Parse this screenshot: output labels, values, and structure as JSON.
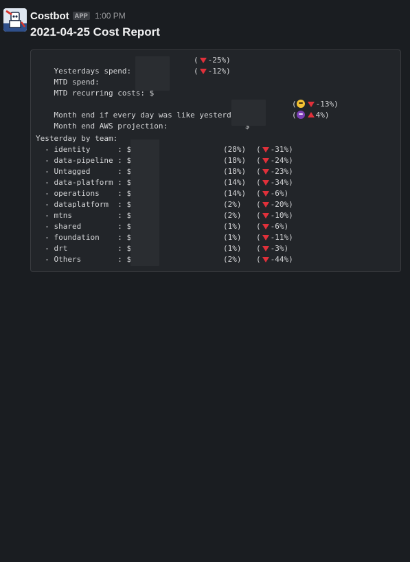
{
  "message": {
    "sender": "Costbot",
    "app_badge": "APP",
    "timestamp": "1:00 PM",
    "title": "2021-04-25 Cost Report"
  },
  "report": {
    "summary": [
      {
        "label": "Yesterdays spend:    $",
        "change": "-25%"
      },
      {
        "label": "MTD spend:           $",
        "change": "-12%"
      },
      {
        "label": "MTD recurring costs: $",
        "change": ""
      }
    ],
    "projections": [
      {
        "label": "Month end if every day was like yesterday: $",
        "emoji": "neutral-face-emoji",
        "direction": "down",
        "change": "-13%"
      },
      {
        "label": "Month end AWS projection:                 $",
        "emoji": "devil-emoji",
        "direction": "up",
        "change": "4%"
      }
    ],
    "team_heading": "Yesterday by team:",
    "teams": [
      {
        "label": "  - identity      : $",
        "share": "(28%)",
        "change": "-31%"
      },
      {
        "label": "  - data-pipeline : $",
        "share": "(18%)",
        "change": "-24%"
      },
      {
        "label": "  - Untagged      : $",
        "share": "(18%)",
        "change": "-23%"
      },
      {
        "label": "  - data-platform : $",
        "share": "(14%)",
        "change": "-34%"
      },
      {
        "label": "  - operations    : $",
        "share": "(14%)",
        "change": "-6%"
      },
      {
        "label": "  - dataplatform  : $",
        "share": "(2%)",
        "change": "-20%"
      },
      {
        "label": "  - mtns          : $",
        "share": "(2%)",
        "change": "-10%"
      },
      {
        "label": "  - shared        : $",
        "share": "(1%)",
        "change": "-6%"
      },
      {
        "label": "  - foundation    : $",
        "share": "(1%)",
        "change": "-11%"
      },
      {
        "label": "  - drt           : $",
        "share": "(1%)",
        "change": "-3%"
      },
      {
        "label": "  - Others        : $",
        "share": "(2%)",
        "change": "-44%"
      }
    ]
  },
  "colors": {
    "background": "#1a1d21",
    "code_background": "#222529",
    "indicator_red": "#e0303a"
  }
}
